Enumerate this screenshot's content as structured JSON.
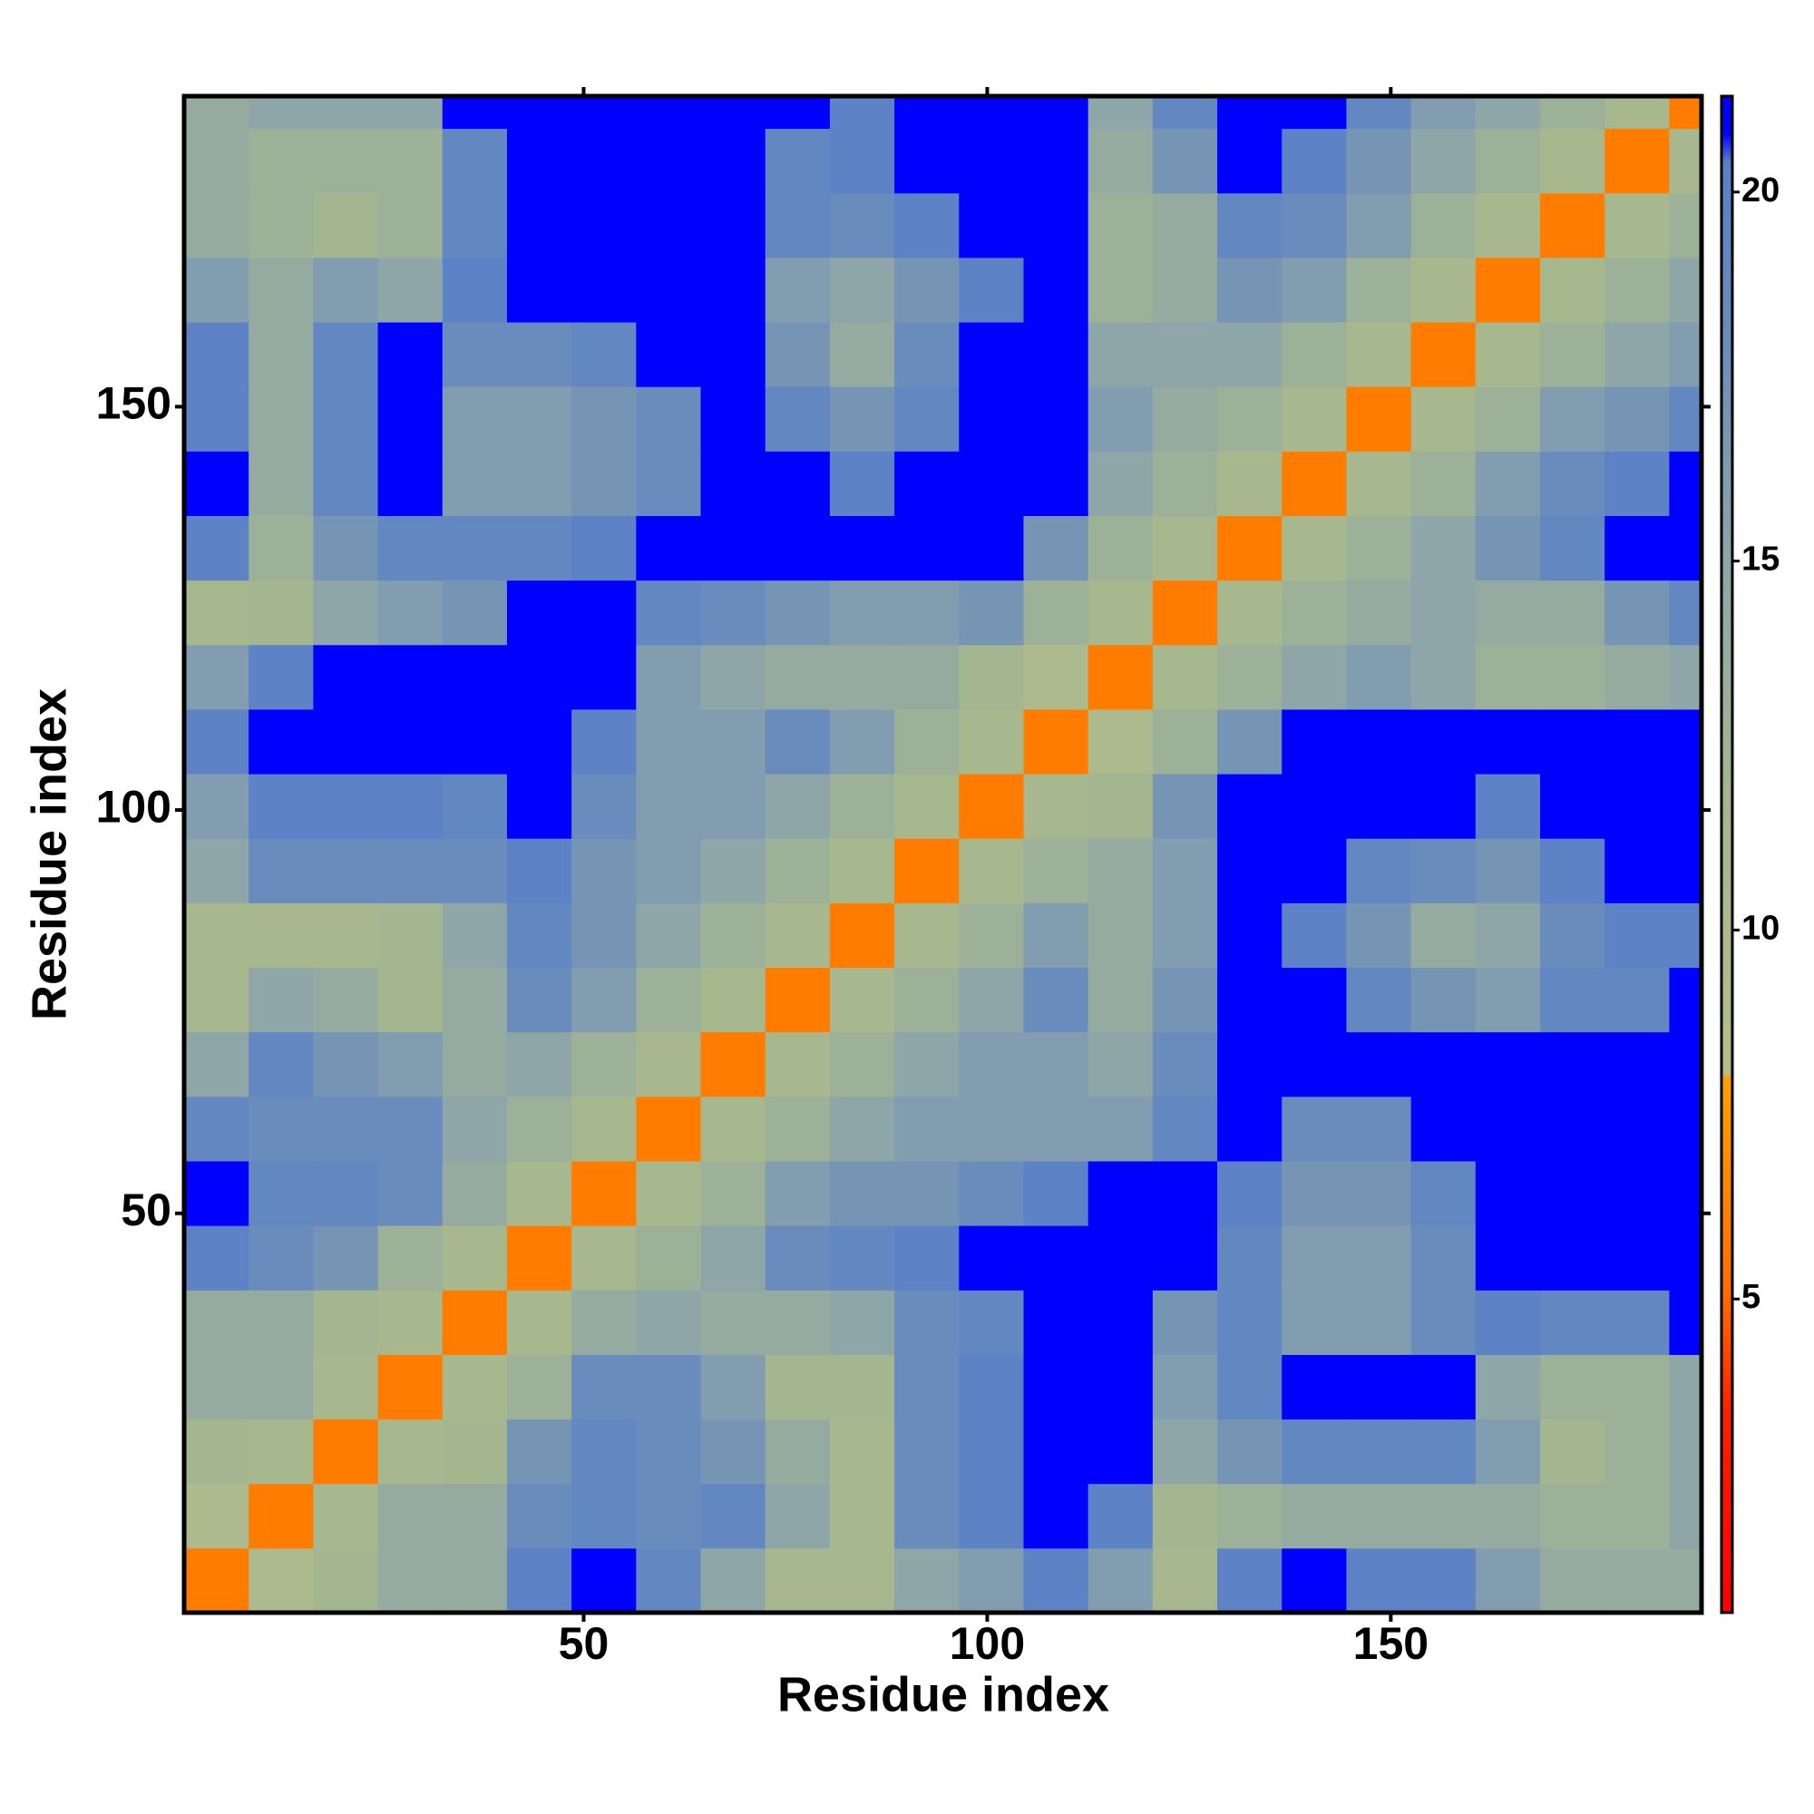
{
  "chart_data": {
    "type": "heatmap",
    "xlabel": "Residue index",
    "ylabel": "Residue index",
    "x_bins": [
      0.5,
      8.5,
      16.5,
      24.5,
      32.5,
      40.5,
      48.5,
      56.5,
      64.5,
      72.5,
      80.5,
      88.5,
      96.5,
      104.5,
      112.5,
      120.5,
      128.5,
      136.5,
      144.5,
      152.5,
      160.5,
      168.5,
      176.5,
      184.5,
      188.5
    ],
    "y_bins": [
      0.5,
      8.5,
      16.5,
      24.5,
      32.5,
      40.5,
      48.5,
      56.5,
      64.5,
      72.5,
      80.5,
      88.5,
      96.5,
      104.5,
      112.5,
      120.5,
      128.5,
      136.5,
      144.5,
      152.5,
      160.5,
      168.5,
      176.5,
      184.5,
      188.5
    ],
    "z": [
      [
        6,
        10,
        12,
        14,
        14,
        20,
        21,
        19,
        15,
        11,
        11,
        15,
        16,
        20,
        16,
        11,
        20,
        21,
        20,
        20,
        16,
        14,
        14,
        14
      ],
      [
        10,
        6,
        11,
        14,
        14,
        18,
        19,
        18,
        19,
        15,
        11,
        18,
        20,
        21,
        20,
        12,
        13,
        14,
        14,
        14,
        14,
        13,
        13,
        15
      ],
      [
        12,
        11,
        6,
        11,
        12,
        17,
        19,
        18,
        17,
        14,
        11,
        18,
        20,
        21,
        21,
        15,
        17,
        19,
        19,
        19,
        16,
        12,
        13,
        15
      ],
      [
        14,
        14,
        11,
        6,
        11,
        13,
        18,
        18,
        16,
        12,
        12,
        18,
        20,
        21,
        21,
        16,
        19,
        21,
        21,
        21,
        15,
        13,
        13,
        15
      ],
      [
        14,
        14,
        12,
        11,
        6,
        11,
        14,
        15,
        14,
        14,
        15,
        18,
        19,
        21,
        21,
        17,
        19,
        16,
        16,
        18,
        20,
        19,
        19,
        21
      ],
      [
        20,
        18,
        17,
        13,
        11,
        6,
        11,
        13,
        15,
        18,
        19,
        20,
        21,
        21,
        21,
        21,
        19,
        16,
        16,
        18,
        21,
        21,
        21,
        21
      ],
      [
        21,
        19,
        19,
        18,
        14,
        11,
        6,
        11,
        13,
        16,
        17,
        17,
        18,
        20,
        21,
        21,
        20,
        17,
        17,
        19,
        21,
        21,
        21,
        21
      ],
      [
        19,
        18,
        18,
        18,
        15,
        13,
        11,
        6,
        11,
        13,
        15,
        16,
        16,
        16,
        16,
        19,
        21,
        18,
        18,
        21,
        21,
        21,
        21,
        21
      ],
      [
        15,
        19,
        17,
        16,
        14,
        15,
        13,
        11,
        6,
        11,
        13,
        15,
        16,
        16,
        15,
        18,
        21,
        21,
        21,
        21,
        21,
        21,
        21,
        21
      ],
      [
        11,
        15,
        14,
        12,
        14,
        18,
        16,
        13,
        11,
        6,
        11,
        13,
        15,
        18,
        14,
        17,
        21,
        21,
        19,
        17,
        16,
        19,
        19,
        21
      ],
      [
        11,
        11,
        11,
        12,
        15,
        19,
        17,
        15,
        13,
        11,
        6,
        11,
        13,
        16,
        14,
        16,
        21,
        20,
        17,
        14,
        15,
        18,
        20,
        20
      ],
      [
        15,
        18,
        18,
        18,
        18,
        20,
        17,
        16,
        15,
        13,
        11,
        6,
        11,
        13,
        14,
        16,
        21,
        21,
        19,
        18,
        17,
        20,
        21,
        21
      ],
      [
        16,
        20,
        20,
        20,
        19,
        21,
        18,
        16,
        16,
        15,
        13,
        11,
        6,
        11,
        12,
        17,
        21,
        21,
        21,
        21,
        20,
        21,
        21,
        21
      ],
      [
        20,
        21,
        21,
        21,
        21,
        21,
        20,
        16,
        16,
        18,
        16,
        13,
        11,
        6,
        10,
        13,
        17,
        21,
        21,
        21,
        21,
        21,
        21,
        21
      ],
      [
        16,
        20,
        21,
        21,
        21,
        21,
        21,
        16,
        15,
        14,
        14,
        14,
        12,
        10,
        6,
        11,
        13,
        15,
        16,
        15,
        13,
        13,
        14,
        15
      ],
      [
        11,
        12,
        15,
        16,
        17,
        21,
        21,
        19,
        18,
        17,
        16,
        16,
        17,
        13,
        11,
        6,
        11,
        13,
        14,
        15,
        14,
        14,
        17,
        19
      ],
      [
        20,
        13,
        17,
        19,
        19,
        19,
        20,
        21,
        21,
        21,
        21,
        21,
        21,
        17,
        13,
        11,
        6,
        11,
        13,
        15,
        17,
        19,
        21,
        21
      ],
      [
        21,
        14,
        19,
        21,
        16,
        16,
        17,
        18,
        21,
        21,
        20,
        21,
        21,
        21,
        15,
        13,
        11,
        6,
        11,
        13,
        16,
        18,
        20,
        21
      ],
      [
        20,
        14,
        19,
        21,
        16,
        16,
        17,
        18,
        21,
        19,
        17,
        19,
        21,
        21,
        16,
        14,
        13,
        11,
        6,
        11,
        13,
        16,
        17,
        19
      ],
      [
        20,
        14,
        19,
        21,
        18,
        18,
        19,
        21,
        21,
        17,
        14,
        18,
        21,
        21,
        15,
        15,
        15,
        13,
        11,
        6,
        11,
        13,
        15,
        16
      ],
      [
        16,
        14,
        16,
        15,
        20,
        21,
        21,
        21,
        21,
        16,
        15,
        17,
        20,
        21,
        13,
        14,
        17,
        16,
        13,
        11,
        6,
        11,
        13,
        15
      ],
      [
        14,
        13,
        12,
        13,
        19,
        21,
        21,
        21,
        21,
        19,
        18,
        20,
        21,
        21,
        13,
        14,
        19,
        18,
        16,
        13,
        11,
        6,
        11,
        13
      ],
      [
        14,
        13,
        13,
        13,
        19,
        21,
        21,
        21,
        21,
        19,
        20,
        21,
        21,
        21,
        14,
        17,
        21,
        20,
        17,
        15,
        13,
        11,
        6,
        11
      ],
      [
        14,
        15,
        15,
        15,
        21,
        21,
        21,
        21,
        21,
        21,
        20,
        21,
        21,
        21,
        15,
        19,
        21,
        21,
        19,
        16,
        15,
        13,
        11,
        6
      ]
    ],
    "xlim": [
      0.5,
      188.5
    ],
    "ylim": [
      0.5,
      188.5
    ],
    "xticks": [
      50,
      100,
      150
    ],
    "yticks": [
      50,
      100,
      150
    ],
    "colorbar": {
      "lim": [
        0.75,
        21.3
      ],
      "ticks": [
        5,
        10,
        15,
        20
      ],
      "colormap": [
        {
          "value": 0.75,
          "color": "#ff0000"
        },
        {
          "value": 3.5,
          "color": "#ff2000"
        },
        {
          "value": 5,
          "color": "#ff6a00"
        },
        {
          "value": 8,
          "color": "#ffa000"
        },
        {
          "value": 8.05,
          "color": "#b4be8a"
        },
        {
          "value": 12,
          "color": "#a3b690"
        },
        {
          "value": 15,
          "color": "#8ea6a8"
        },
        {
          "value": 18,
          "color": "#6a8cbc"
        },
        {
          "value": 20.4,
          "color": "#5a80c8"
        },
        {
          "value": 20.8,
          "color": "#0000ff"
        },
        {
          "value": 21.3,
          "color": "#0000ff"
        }
      ]
    }
  }
}
